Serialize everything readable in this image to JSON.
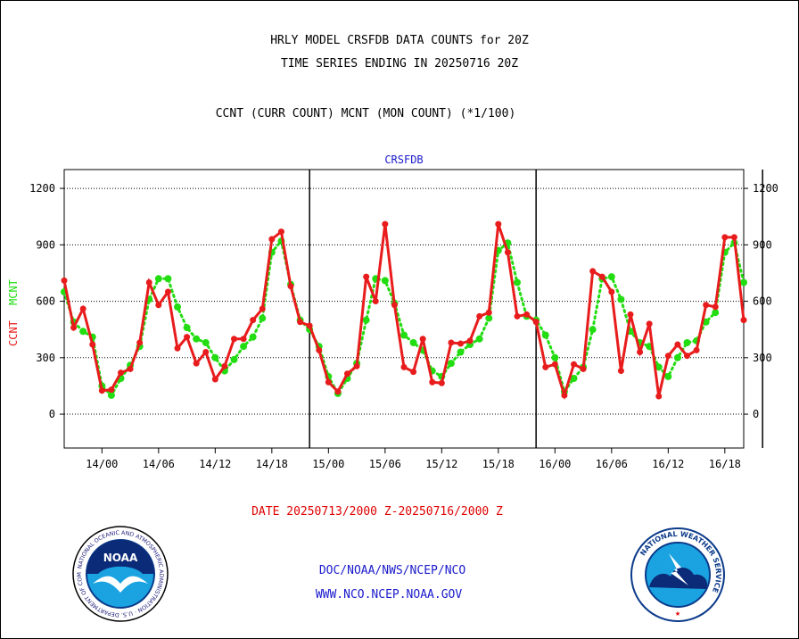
{
  "header": {
    "title_line1": "HRLY MODEL CRSFDB DATA COUNTS for 20Z",
    "title_line2": "TIME SERIES ENDING IN 20250716 20Z",
    "subtitle": "CCNT (CURR COUNT) MCNT (MON COUNT) (*1/100)"
  },
  "footer": {
    "date_range": "DATE 20250713/2000 Z-20250716/2000 Z",
    "credit_line1": "DOC/NOAA/NWS/NCEP/NCO",
    "credit_line2": "WWW.NCO.NCEP.NOAA.GOV"
  },
  "logos": {
    "noaa": {
      "center_text": "NOAA",
      "ring_text": "NATIONAL OCEANIC AND ATMOSPHERIC ADMINISTRATION · U.S. DEPARTMENT OF COMMERCE"
    },
    "nws": {
      "ring_text": "NATIONAL WEATHER SERVICE"
    }
  },
  "colors": {
    "ccnt": "#e81c1c",
    "mcnt": "#22dd11",
    "axis": "#000000",
    "panel_label": "#1a1acc"
  },
  "chart_data": {
    "type": "line",
    "title": "CRSFDB",
    "ylabel_ccnt": "CCNT",
    "ylabel_mcnt": "MCNT",
    "x_start_hour": -4,
    "x_end_hour": 68,
    "ylim": [
      -180,
      1300
    ],
    "yticks": [
      0,
      300,
      600,
      900,
      1200
    ],
    "grid_y": true,
    "day_boundaries_hour": [
      22,
      46,
      70
    ],
    "xticks": [
      {
        "hour": 0,
        "label": "14/00"
      },
      {
        "hour": 6,
        "label": "14/06"
      },
      {
        "hour": 12,
        "label": "14/12"
      },
      {
        "hour": 18,
        "label": "14/18"
      },
      {
        "hour": 24,
        "label": "15/00"
      },
      {
        "hour": 30,
        "label": "15/06"
      },
      {
        "hour": 36,
        "label": "15/12"
      },
      {
        "hour": 42,
        "label": "15/18"
      },
      {
        "hour": 48,
        "label": "16/00"
      },
      {
        "hour": 54,
        "label": "16/06"
      },
      {
        "hour": 60,
        "label": "16/12"
      },
      {
        "hour": 66,
        "label": "16/18"
      }
    ],
    "series": [
      {
        "name": "CCNT",
        "style": "solid",
        "values": [
          710,
          460,
          560,
          370,
          125,
          130,
          220,
          240,
          380,
          700,
          580,
          650,
          350,
          410,
          270,
          330,
          185,
          255,
          400,
          400,
          500,
          560,
          930,
          970,
          680,
          490,
          470,
          340,
          170,
          120,
          215,
          255,
          730,
          600,
          1010,
          580,
          250,
          225,
          400,
          170,
          165,
          380,
          375,
          390,
          520,
          540,
          1010,
          860,
          520,
          530,
          490,
          250,
          265,
          100,
          265,
          240,
          760,
          730,
          650,
          230,
          530,
          330,
          480,
          95,
          310,
          370,
          310,
          340,
          580,
          570,
          940,
          940,
          500
        ]
      },
      {
        "name": "MCNT",
        "style": "dotted",
        "values": [
          650,
          490,
          440,
          410,
          150,
          100,
          190,
          260,
          360,
          610,
          720,
          720,
          570,
          460,
          400,
          380,
          300,
          230,
          290,
          360,
          410,
          510,
          860,
          920,
          690,
          500,
          450,
          360,
          200,
          110,
          190,
          270,
          500,
          720,
          710,
          590,
          420,
          380,
          340,
          230,
          200,
          270,
          330,
          370,
          400,
          510,
          870,
          910,
          700,
          520,
          500,
          420,
          300,
          120,
          190,
          250,
          450,
          720,
          730,
          610,
          440,
          380,
          360,
          250,
          200,
          300,
          380,
          390,
          490,
          540,
          860,
          910,
          700
        ]
      }
    ]
  }
}
